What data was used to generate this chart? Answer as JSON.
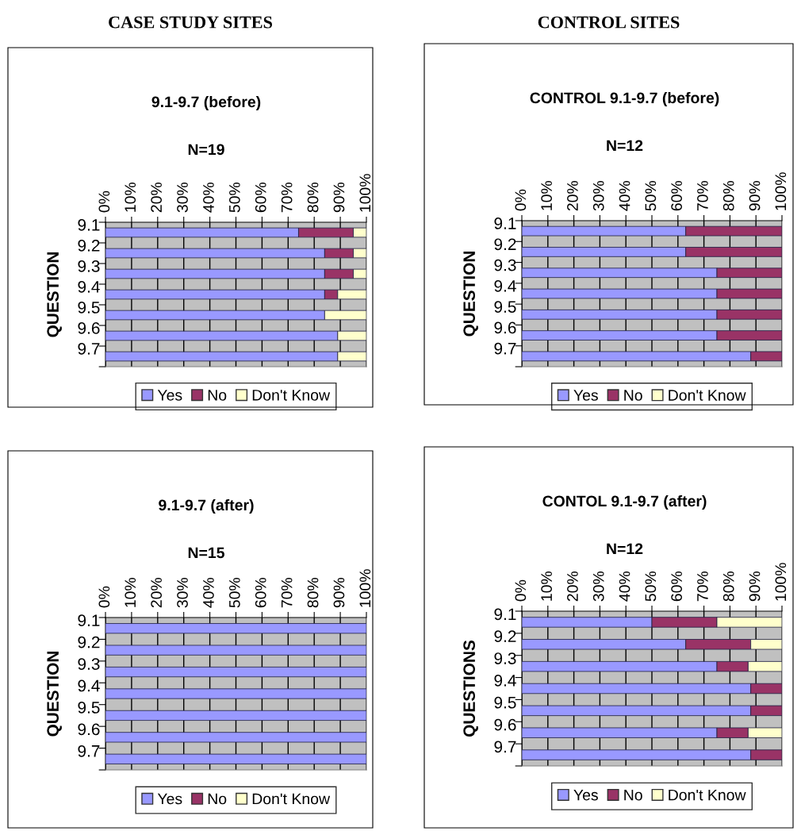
{
  "chart_data": [
    {
      "type": "bar",
      "orientation": "horizontal",
      "stacked": true,
      "title": "9.1-9.7 (before)",
      "subtitle": "N=19",
      "ylabel": "QUESTION",
      "annotations": [
        "CASE STUDY SITES"
      ],
      "categories": [
        "9.1",
        "9.2",
        "9.3",
        "9.4",
        "9.5",
        "9.6",
        "9.7"
      ],
      "series": [
        {
          "name": "Yes",
          "color": "#9999ff",
          "values": [
            74,
            84,
            84,
            84,
            84,
            89,
            89
          ]
        },
        {
          "name": "No",
          "color": "#993366",
          "values": [
            21,
            11,
            11,
            5,
            null,
            null,
            null
          ]
        },
        {
          "name": "Don't Know",
          "color": "#ffffcc",
          "values": [
            5,
            5,
            5,
            11,
            16,
            11,
            11
          ]
        }
      ],
      "xlim": [
        0,
        100
      ],
      "xticks": [
        {
          "value": 0,
          "label": "0%"
        },
        {
          "value": 10,
          "label": "10%"
        },
        {
          "value": 20,
          "label": "20%"
        },
        {
          "value": 30,
          "label": "30%"
        },
        {
          "value": 40,
          "label": "40%"
        },
        {
          "value": 50,
          "label": "50%"
        },
        {
          "value": 60,
          "label": "60%"
        },
        {
          "value": 70,
          "label": "70%"
        },
        {
          "value": 80,
          "label": "80%"
        },
        {
          "value": 90,
          "label": "90%"
        },
        {
          "value": 100,
          "label": "100%"
        }
      ],
      "grid": "x",
      "legend": "bottom"
    },
    {
      "type": "bar",
      "orientation": "horizontal",
      "stacked": true,
      "title": "CONTROL 9.1-9.7 (before)",
      "subtitle": "N=12",
      "ylabel": "QUESTION",
      "annotations": [
        "CONTROL SITES"
      ],
      "categories": [
        "9.1",
        "9.2",
        "9.3",
        "9.4",
        "9.5",
        "9.6",
        "9.7"
      ],
      "series": [
        {
          "name": "Yes",
          "color": "#9999ff",
          "values": [
            63,
            63,
            75,
            75,
            75,
            75,
            88
          ]
        },
        {
          "name": "No",
          "color": "#993366",
          "values": [
            37,
            37,
            25,
            25,
            25,
            25,
            12
          ]
        },
        {
          "name": "Don't Know",
          "color": "#ffffcc",
          "values": [
            null,
            null,
            null,
            null,
            null,
            null,
            null
          ]
        }
      ],
      "xlim": [
        0,
        100
      ],
      "xticks": [
        {
          "value": 0,
          "label": "0%"
        },
        {
          "value": 10,
          "label": "10%"
        },
        {
          "value": 20,
          "label": "20%"
        },
        {
          "value": 30,
          "label": "30%"
        },
        {
          "value": 40,
          "label": "40%"
        },
        {
          "value": 50,
          "label": "50%"
        },
        {
          "value": 60,
          "label": "60%"
        },
        {
          "value": 70,
          "label": "70%"
        },
        {
          "value": 80,
          "label": "80%"
        },
        {
          "value": 90,
          "label": "90%"
        },
        {
          "value": 100,
          "label": "100%"
        }
      ],
      "grid": "x",
      "legend": "bottom"
    },
    {
      "type": "bar",
      "orientation": "horizontal",
      "stacked": true,
      "title": "9.1-9.7 (after)",
      "subtitle": "N=15",
      "ylabel": "QUESTION",
      "categories": [
        "9.1",
        "9.2",
        "9.3",
        "9.4",
        "9.5",
        "9.6",
        "9.7"
      ],
      "series": [
        {
          "name": "Yes",
          "color": "#9999ff",
          "values": [
            100,
            100,
            100,
            100,
            100,
            100,
            100
          ]
        },
        {
          "name": "No",
          "color": "#993366",
          "values": [
            null,
            null,
            null,
            null,
            null,
            null,
            null
          ]
        },
        {
          "name": "Don't Know",
          "color": "#ffffcc",
          "values": [
            null,
            null,
            null,
            null,
            null,
            null,
            null
          ]
        }
      ],
      "xlim": [
        0,
        100
      ],
      "xticks": [
        {
          "value": 0,
          "label": "0%"
        },
        {
          "value": 10,
          "label": "10%"
        },
        {
          "value": 20,
          "label": "20%"
        },
        {
          "value": 30,
          "label": "30%"
        },
        {
          "value": 40,
          "label": "40%"
        },
        {
          "value": 50,
          "label": "50%"
        },
        {
          "value": 60,
          "label": "60%"
        },
        {
          "value": 70,
          "label": "70%"
        },
        {
          "value": 80,
          "label": "80%"
        },
        {
          "value": 90,
          "label": "90%"
        },
        {
          "value": 100,
          "label": "100%"
        }
      ],
      "grid": "x",
      "legend": "bottom"
    },
    {
      "type": "bar",
      "orientation": "horizontal",
      "stacked": true,
      "title": "CONTOL 9.1-9.7 (after)",
      "subtitle": "N=12",
      "ylabel": "QUESTIONS",
      "categories": [
        "9.1",
        "9.2",
        "9.3",
        "9.4",
        "9.5",
        "9.6",
        "9.7"
      ],
      "series": [
        {
          "name": "Yes",
          "color": "#9999ff",
          "values": [
            50,
            63,
            75,
            88,
            88,
            75,
            88
          ]
        },
        {
          "name": "No",
          "color": "#993366",
          "values": [
            25,
            25,
            12,
            12,
            12,
            12,
            12
          ]
        },
        {
          "name": "Don't Know",
          "color": "#ffffcc",
          "values": [
            25,
            12,
            13,
            null,
            null,
            13,
            null
          ]
        }
      ],
      "xlim": [
        0,
        100
      ],
      "xticks": [
        {
          "value": 0,
          "label": "0%"
        },
        {
          "value": 10,
          "label": "10%"
        },
        {
          "value": 20,
          "label": "20%"
        },
        {
          "value": 30,
          "label": "30%"
        },
        {
          "value": 40,
          "label": "40%"
        },
        {
          "value": 50,
          "label": "50%"
        },
        {
          "value": 60,
          "label": "60%"
        },
        {
          "value": 70,
          "label": "70%"
        },
        {
          "value": 80,
          "label": "80%"
        },
        {
          "value": 90,
          "label": "90%"
        },
        {
          "value": 100,
          "label": "100%"
        }
      ],
      "grid": "x",
      "legend": "bottom"
    }
  ]
}
